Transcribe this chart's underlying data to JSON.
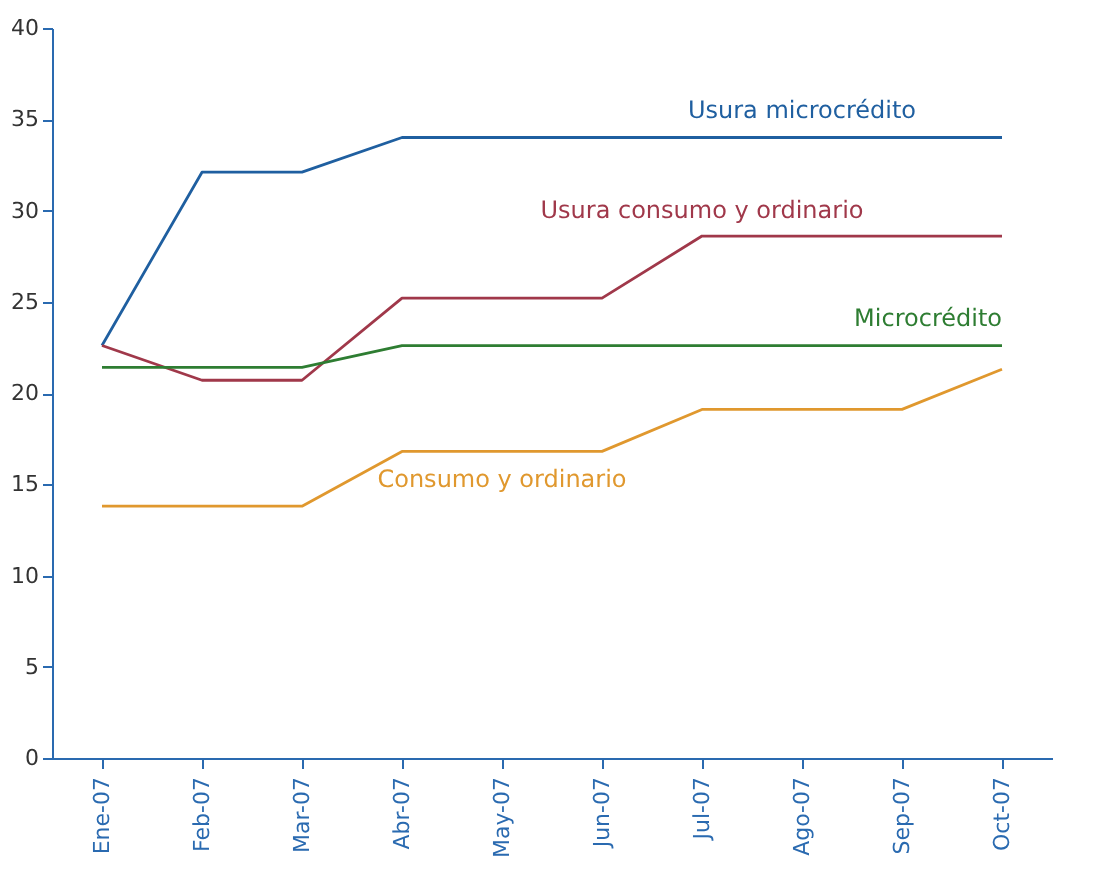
{
  "chart_data": {
    "type": "line",
    "categories": [
      "Ene-07",
      "Feb-07",
      "Mar-07",
      "Abr-07",
      "May-07",
      "Jun-07",
      "Jul-07",
      "Ago-07",
      "Sep-07",
      "Oct-07"
    ],
    "series": [
      {
        "name": "Usura microcrédito",
        "color": "#1f5fa0",
        "values": [
          22.6,
          32.1,
          32.1,
          34.0,
          34.0,
          34.0,
          34.0,
          34.0,
          34.0,
          34.0
        ]
      },
      {
        "name": "Usura consumo y ordinario",
        "color": "#a0384a",
        "values": [
          22.6,
          20.7,
          20.7,
          25.2,
          25.2,
          25.2,
          28.6,
          28.6,
          28.6,
          28.6
        ]
      },
      {
        "name": "Microcrédito",
        "color": "#2e7d32",
        "values": [
          21.4,
          21.4,
          21.4,
          22.6,
          22.6,
          22.6,
          22.6,
          22.6,
          22.6,
          22.6
        ]
      },
      {
        "name": "Consumo y ordinario",
        "color": "#e0982e",
        "values": [
          13.8,
          13.8,
          13.8,
          16.8,
          16.8,
          16.8,
          19.1,
          19.1,
          19.1,
          21.3
        ]
      }
    ],
    "ylim": [
      0,
      40
    ],
    "yticks": [
      0,
      5,
      10,
      15,
      20,
      25,
      30,
      35,
      40
    ],
    "grid": false,
    "legend": false,
    "marker": "none",
    "line_style": "solid"
  }
}
